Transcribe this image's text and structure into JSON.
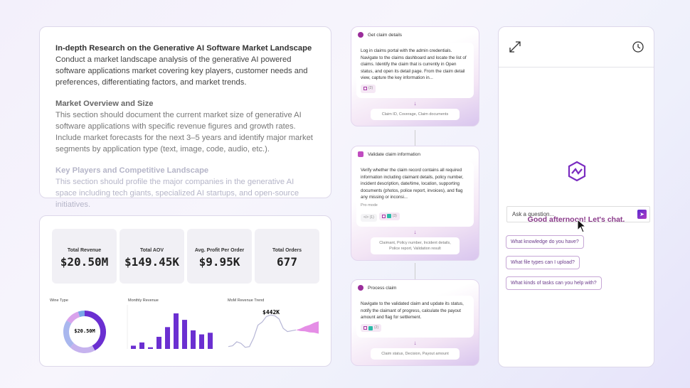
{
  "research": {
    "title": "In-depth Research on the Generative AI Software Market Landscape",
    "intro": "Conduct a market landscape analysis of the generative AI powered software applications market covering key players, customer needs and preferences, differentiating factors, and market trends.",
    "sections": [
      {
        "heading": "Market Overview and Size",
        "text": "This section should document the current market size of generative AI software applications with specific revenue figures and growth rates. Include market forecasts for the next 3–5 years and identify major market segments by application type (text, image, code, audio, etc.)."
      },
      {
        "heading": "Key Players and Competitive Landscape",
        "text": "This section should profile the major companies in the generative AI space including tech giants, specialized AI startups, and open-source initiatives."
      }
    ]
  },
  "dashboard": {
    "kpis": [
      {
        "label": "Total Revenue",
        "value": "$20.50M"
      },
      {
        "label": "Total AOV",
        "value": "$149.45K"
      },
      {
        "label": "Avg. Profit Per Order",
        "value": "$9.95K"
      },
      {
        "label": "Total Orders",
        "value": "677"
      }
    ]
  },
  "chart_data": [
    {
      "type": "pie",
      "title": "Wine Type",
      "center_label": "$20.50M",
      "values": [
        42,
        20,
        22,
        11,
        5
      ],
      "colors": [
        "#6b2fd1",
        "#c6b3ee",
        "#a9b7ee",
        "#d9a3ec",
        "#79a7e8"
      ]
    },
    {
      "type": "bar",
      "title": "Monthly Revenue",
      "values": [
        4,
        8,
        2,
        15,
        27,
        44,
        36,
        23,
        18,
        20
      ],
      "color": "#6b2fd1"
    },
    {
      "type": "line",
      "title": "MoM Revenue Trend",
      "annotation": "$442K",
      "values": [
        3,
        4,
        9,
        7,
        2,
        3,
        14,
        30,
        34,
        41,
        43,
        42,
        38,
        26,
        22,
        23,
        24
      ],
      "forecast": [
        24,
        24,
        25,
        25,
        26,
        26
      ],
      "color": "#b6b6d6",
      "forecast_color": "#e58ee6"
    }
  ],
  "workflow": [
    {
      "title": "Get claim details",
      "text": "Log in claims portal with the admin credentials. Navigate to the claims dashboard and locate the list of claims. Identify the claim that is currently in Open status, and open its detail page. From the claim detail view, capture the key information in...",
      "badges": [
        "(2)"
      ],
      "output": "Claim ID, Coverage, Claim documents"
    },
    {
      "title": "Validate claim information",
      "text": "Verify whether the claim record contains all required information including claimant details, policy number, incident description, date/time, location, supporting documents (photos, police report, invoices), and flag any missing or inconsi...",
      "mode": "Pro mode",
      "badges": [
        "</> (1)",
        "(3)"
      ],
      "output": "Claimant, Policy number, Incident details, Police report, Validation result"
    },
    {
      "title": "Process claim",
      "text": "Navigate to the validated claim and update its status, notify the claimant of progress, calculate the payout amount and flag for settlement.",
      "badges": [
        "(2)"
      ],
      "output": "Claim status, Decision, Payout amount"
    }
  ],
  "chat": {
    "greeting": "Good afternoon! Let's chat.",
    "placeholder": "Ask a question...",
    "suggestions": [
      "What knowledge do you have?",
      "What file types can I upload?",
      "What kinds of tasks can you help with?"
    ]
  }
}
